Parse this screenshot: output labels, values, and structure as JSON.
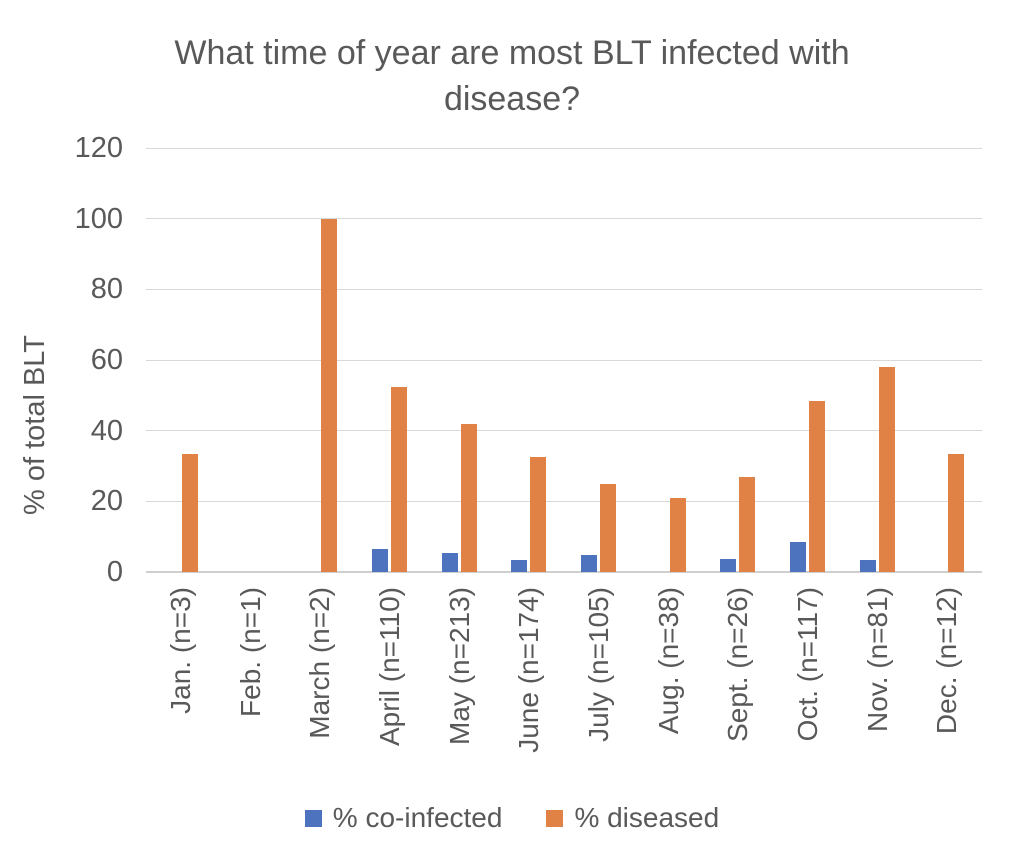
{
  "chart_data": {
    "type": "bar",
    "title": "What time of year are most BLT infected with disease?",
    "xlabel": "",
    "ylabel": "% of total BLT",
    "ylim": [
      0,
      120
    ],
    "yticks": [
      0,
      20,
      40,
      60,
      80,
      100,
      120
    ],
    "grid": true,
    "legend_position": "bottom",
    "categories": [
      "Jan. (n=3)",
      "Feb. (n=1)",
      "March (n=2)",
      "April (n=110)",
      "May (n=213)",
      "June (n=174)",
      "July (n=105)",
      "Aug. (n=38)",
      "Sept. (n=26)",
      "Oct. (n=117)",
      "Nov. (n=81)",
      "Dec. (n=12)"
    ],
    "series": [
      {
        "name": "% co-infected",
        "color": "#4d73be",
        "values": [
          0,
          0,
          0,
          6.4,
          5.5,
          3.4,
          4.8,
          0,
          3.8,
          8.5,
          3.5,
          0
        ]
      },
      {
        "name": "% diseased",
        "color": "#e08245",
        "values": [
          33.3,
          0,
          100,
          52.5,
          42,
          32.5,
          25,
          21,
          27,
          48.5,
          58,
          33.3
        ]
      }
    ]
  },
  "colors": {
    "text": "#595959",
    "gridline": "#d9d9d9"
  }
}
